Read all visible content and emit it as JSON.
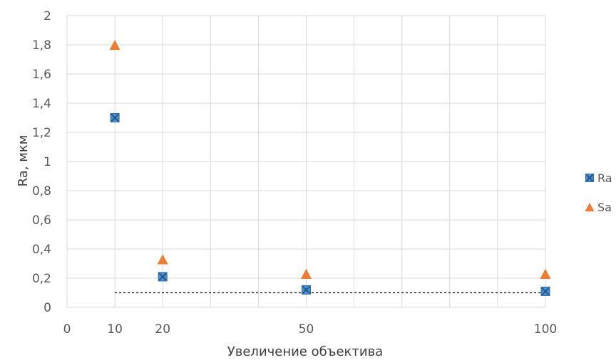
{
  "chart_data": {
    "type": "scatter",
    "xlabel": "Увеличение объектива",
    "ylabel": "Ra, мкм",
    "xlim": [
      0,
      100
    ],
    "ylim": [
      0,
      2
    ],
    "x_ticks": [
      "0",
      "10",
      "20",
      "50",
      "100"
    ],
    "x_tick_values": [
      0,
      10,
      20,
      50,
      100
    ],
    "y_ticks": [
      "0",
      "0,2",
      "0,4",
      "0,6",
      "0,8",
      "1",
      "1,2",
      "1,4",
      "1,6",
      "1,8",
      "2"
    ],
    "y_tick_values": [
      0,
      0.2,
      0.4,
      0.6,
      0.8,
      1.0,
      1.2,
      1.4,
      1.6,
      1.8,
      2.0
    ],
    "grid": true,
    "legend_position": "right",
    "series": [
      {
        "name": "Ra",
        "marker": "square-x",
        "color": "#4a8fd0",
        "x": [
          10,
          20,
          50,
          100
        ],
        "y": [
          1.3,
          0.21,
          0.12,
          0.11
        ]
      },
      {
        "name": "Sa",
        "marker": "triangle",
        "color": "#ed7d31",
        "x": [
          10,
          20,
          50,
          100
        ],
        "y": [
          1.8,
          0.33,
          0.23,
          0.23
        ]
      }
    ],
    "reference_line": {
      "style": "dashed",
      "color": "#000000",
      "y": 0.1,
      "x": [
        10,
        100
      ]
    }
  }
}
